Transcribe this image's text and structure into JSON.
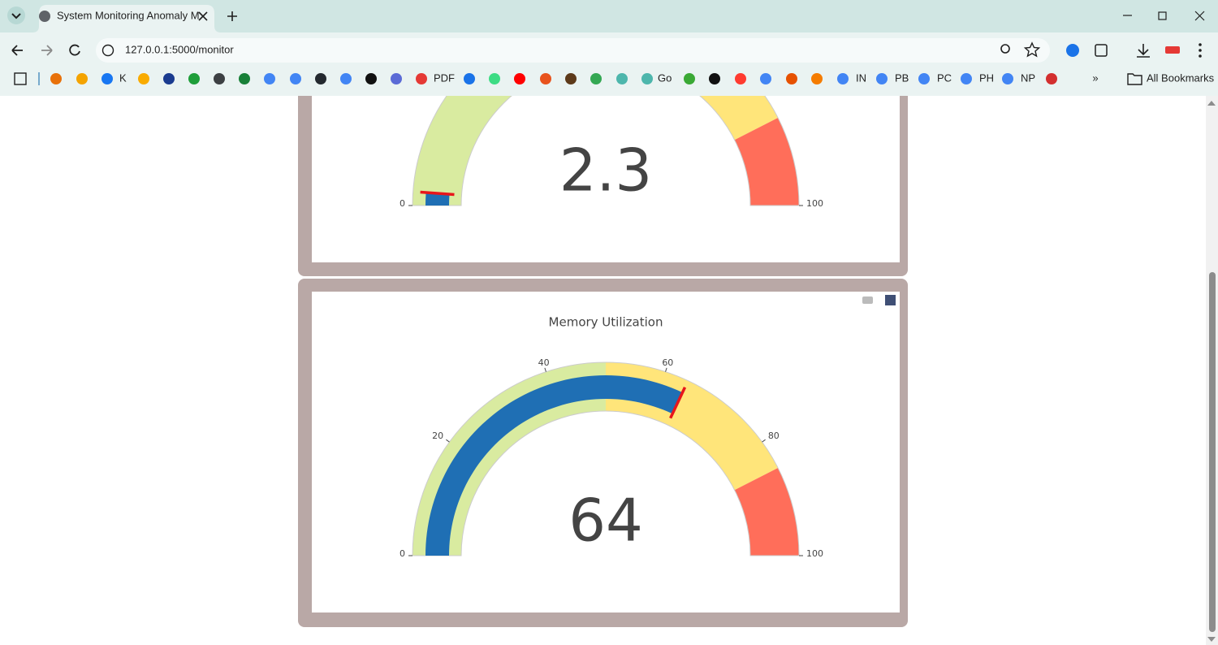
{
  "browser": {
    "tab_title": "System Monitoring Anomaly M",
    "url": "127.0.0.1:5000/monitor",
    "bookmarks": [
      "K",
      "PDF",
      "Go",
      "IN",
      "PB",
      "PC",
      "PH",
      "NP"
    ],
    "all_bookmarks": "All Bookmarks"
  },
  "chart_data": [
    {
      "type": "gauge",
      "value": 2.3,
      "range": [
        0,
        100
      ],
      "ticks": [
        0,
        100
      ],
      "threshold": 2.3,
      "bar_color": "#1f6fb4",
      "threshold_color": "#e8161b",
      "steps": [
        {
          "range": [
            0,
            50
          ],
          "color": "#d9eba0"
        },
        {
          "range": [
            50,
            85
          ],
          "color": "#ffe57a"
        },
        {
          "range": [
            85,
            100
          ],
          "color": "#ff6e5a"
        }
      ]
    },
    {
      "type": "gauge",
      "title": "Memory Utilization",
      "value": 64,
      "range": [
        0,
        100
      ],
      "ticks": [
        0,
        20,
        40,
        60,
        80,
        100
      ],
      "threshold": 64,
      "bar_color": "#1f6fb4",
      "threshold_color": "#e8161b",
      "steps": [
        {
          "range": [
            0,
            50
          ],
          "color": "#d9eba0"
        },
        {
          "range": [
            50,
            85
          ],
          "color": "#ffe57a"
        },
        {
          "range": [
            85,
            100
          ],
          "color": "#ff6e5a"
        }
      ]
    }
  ]
}
